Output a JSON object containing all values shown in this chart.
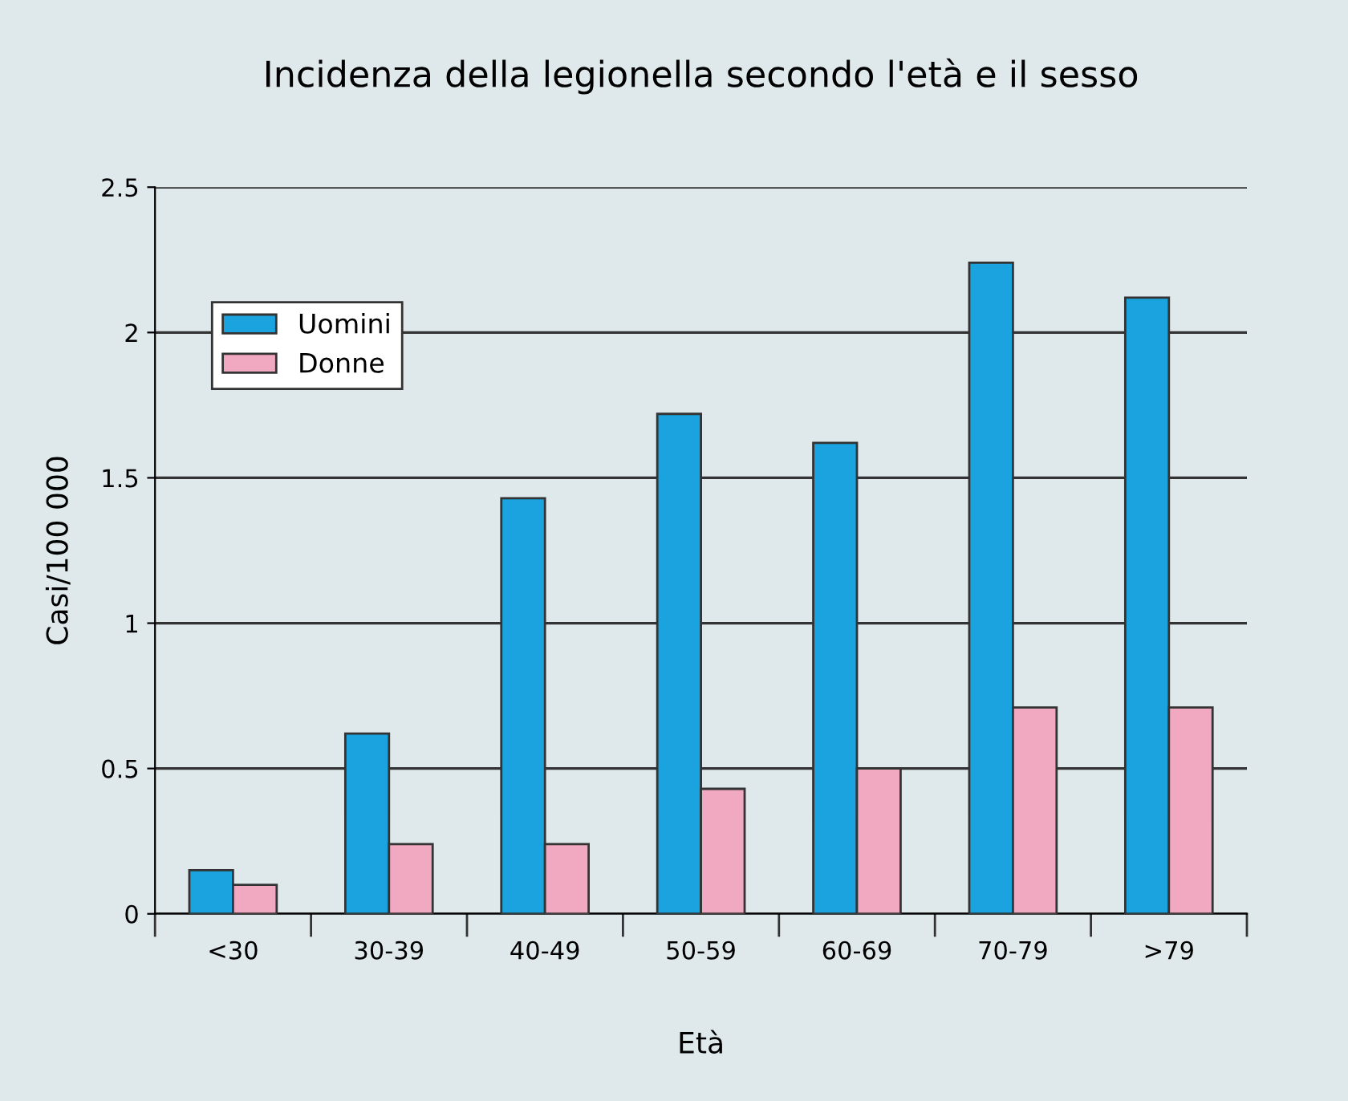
{
  "chart_data": {
    "type": "bar",
    "title": "Incidenza della legionella secondo l'età e il sesso",
    "xlabel": "Età",
    "ylabel": "Casi/100 000",
    "categories": [
      "<30",
      "30-39",
      "40-49",
      "50-59",
      "60-69",
      "70-79",
      ">79"
    ],
    "series": [
      {
        "name": "Uomini",
        "color": "#1aa3de",
        "values": [
          0.15,
          0.62,
          1.43,
          1.72,
          1.62,
          2.24,
          2.12
        ]
      },
      {
        "name": "Donne",
        "color": "#f0a9c0",
        "values": [
          0.1,
          0.24,
          0.24,
          0.43,
          0.5,
          0.71,
          0.71
        ]
      }
    ],
    "ylim": [
      0,
      2.5
    ],
    "yticks": [
      0,
      0.5,
      1,
      1.5,
      2,
      2.5
    ],
    "grid": "y",
    "legend": "top left"
  }
}
